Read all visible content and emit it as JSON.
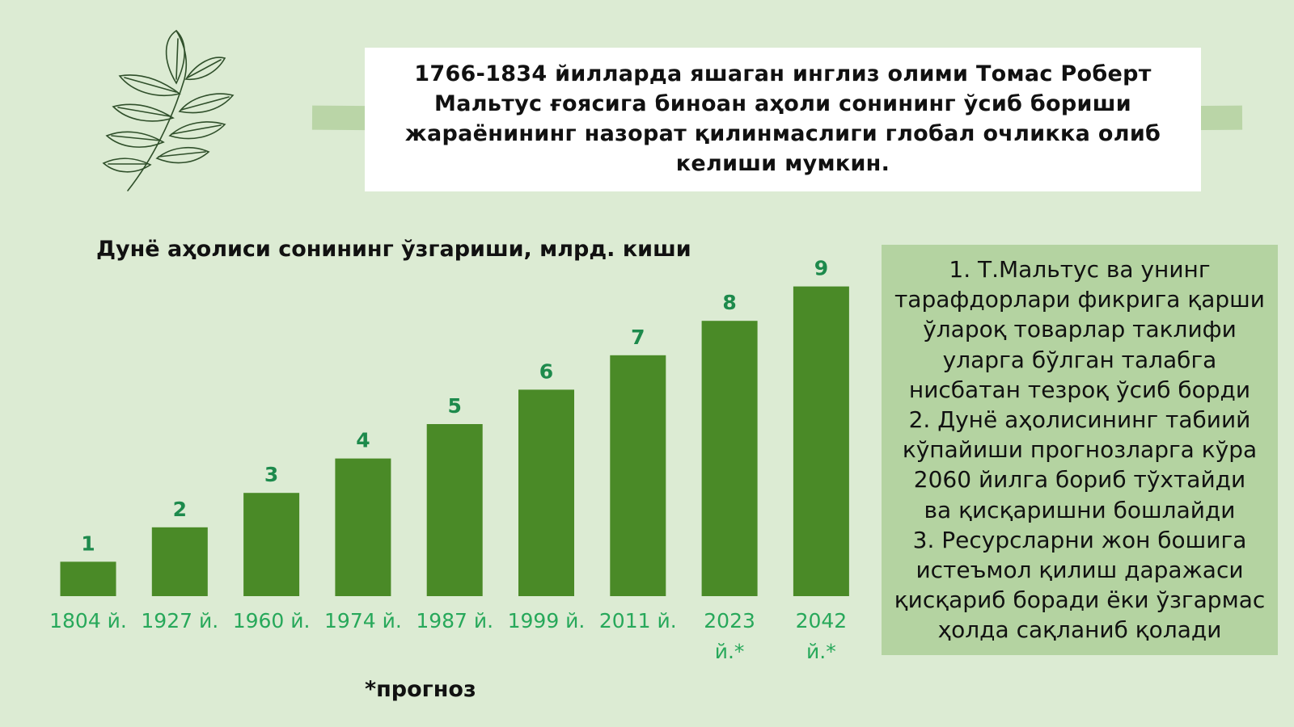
{
  "quote": {
    "lines": [
      "1766-1834 йилларда яшаган инглиз олими Томас Роберт",
      "Мальтус ғоясига биноан аҳоли сонининг ўсиб бориши",
      "жараёнининг назорат қилинмаслиги глобал очликка олиб",
      "келиши мумкин."
    ]
  },
  "chart_data": {
    "type": "bar",
    "title": "Дунё аҳолиси сонининг ўзгариши, млрд. киши",
    "categories": [
      "1804 й.",
      "1927 й.",
      "1960 й.",
      "1974 й.",
      "1987 й.",
      "1999 й.",
      "2011 й.",
      "2023 й.*",
      "2042 й.*"
    ],
    "category_lines": [
      [
        "1804 й."
      ],
      [
        "1927 й."
      ],
      [
        "1960 й."
      ],
      [
        "1974 й."
      ],
      [
        "1987 й."
      ],
      [
        "1999 й."
      ],
      [
        "2011 й."
      ],
      [
        "2023",
        "й.*"
      ],
      [
        "2042",
        "й.*"
      ]
    ],
    "values": [
      1,
      2,
      3,
      4,
      5,
      6,
      7,
      8,
      9
    ],
    "data_labels": [
      "1",
      "2",
      "3",
      "4",
      "5",
      "6",
      "7",
      "8",
      "9"
    ],
    "xlabel": "",
    "ylabel": "",
    "ylim": [
      0,
      9
    ],
    "grid": false,
    "bar_color": "#4a8a27",
    "label_color": "#1d8a4c",
    "tick_color": "#27a85a"
  },
  "footnote": "*прогноз",
  "info": {
    "lines": [
      "1. Т.Мальтус ва унинг",
      "тарафдорлари фикрига қарши",
      "ўлароқ товарлар таклифи",
      "уларга бўлган талабга",
      "нисбатан тезроқ ўсиб борди",
      "2. Дунё аҳолисининг табиий",
      "кўпайиши прогнозларга кўра",
      "2060 йилга бориб тўхтайди",
      "ва қисқаришни бошлайди",
      "3. Ресурсларни жон бошига",
      "истеъмол қилиш даражаси",
      "қисқариб боради ёки ўзгармас",
      "ҳолда сақланиб қолади"
    ]
  },
  "decor": {
    "icon": "leaf-branch-icon",
    "background": "#dcebd3",
    "accent": "#4a8a27"
  }
}
